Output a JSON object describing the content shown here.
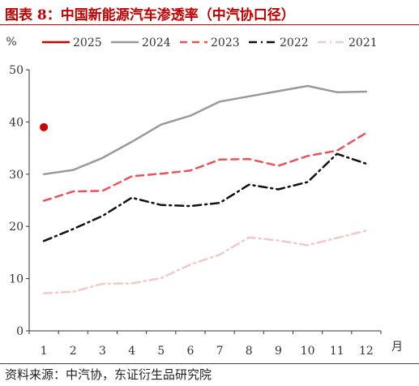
{
  "header": {
    "title": "图表 8：中国新能源汽车渗透率（中汽协口径）"
  },
  "footer": {
    "source": "资料来源：中汽协，东证衍生品研究院"
  },
  "chart_data": {
    "type": "line",
    "title": "图表 8：中国新能源汽车渗透率（中汽协口径）",
    "ylabel": "%",
    "xlabel": "月",
    "x": [
      1,
      2,
      3,
      4,
      5,
      6,
      7,
      8,
      9,
      10,
      11,
      12
    ],
    "ylim": [
      0,
      50
    ],
    "yticks": [
      0,
      10,
      20,
      30,
      40,
      50
    ],
    "grid": false,
    "legend": "top",
    "series": [
      {
        "name": "2025",
        "color": "#cc0000",
        "style": "marker",
        "values": [
          39.0,
          null,
          null,
          null,
          null,
          null,
          null,
          null,
          null,
          null,
          null,
          null
        ]
      },
      {
        "name": "2024",
        "color": "#999999",
        "style": "solid",
        "values": [
          30.0,
          30.8,
          33.1,
          36.2,
          39.5,
          41.2,
          43.9,
          44.9,
          45.9,
          46.9,
          45.7,
          45.8
        ]
      },
      {
        "name": "2023",
        "color": "#e8535a",
        "style": "dashed",
        "values": [
          24.9,
          26.7,
          26.8,
          29.6,
          30.1,
          30.7,
          32.8,
          32.9,
          31.6,
          33.5,
          34.5,
          37.9
        ]
      },
      {
        "name": "2022",
        "color": "#111111",
        "style": "dashdot",
        "values": [
          17.2,
          19.5,
          22.0,
          25.5,
          24.1,
          23.9,
          24.5,
          28.0,
          27.1,
          28.5,
          33.9,
          32.0
        ]
      },
      {
        "name": "2021",
        "color": "#f4c7c9",
        "style": "dashdot",
        "values": [
          7.2,
          7.5,
          9.0,
          9.1,
          10.1,
          12.7,
          14.6,
          17.9,
          17.3,
          16.4,
          17.8,
          19.2
        ]
      }
    ]
  }
}
